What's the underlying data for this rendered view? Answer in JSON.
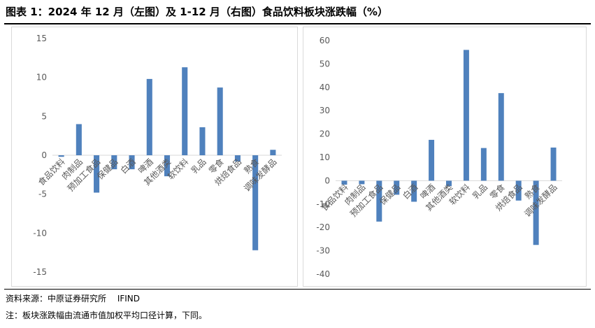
{
  "title": "图表 1：2024 年 12 月（左图）及 1-12 月（右图）食品饮料板块涨跌幅（%）",
  "source": "资料来源：中原证券研究所　 IFIND",
  "note": "注：板块涨跌幅由流通市值加权平均口径计算，下同。",
  "colors": {
    "bar": "#4f81bd",
    "axis": "#d9d9d9",
    "text": "#595959"
  },
  "chart_data": [
    {
      "type": "bar",
      "title": "",
      "xlabel": "",
      "ylabel": "",
      "ylim": [
        -15,
        15
      ],
      "yticks": [
        15,
        10,
        5,
        0,
        -5,
        -10,
        -15
      ],
      "grid": false,
      "categories": [
        "食品饮料",
        "肉制品",
        "预加工食品",
        "保健品",
        "白酒",
        "啤酒",
        "其他酒类",
        "软饮料",
        "乳品",
        "零食",
        "烘焙食品",
        "熟食",
        "调味发酵品"
      ],
      "values": [
        -0.2,
        4.0,
        -4.8,
        -1.8,
        -1.8,
        9.8,
        -2.7,
        11.3,
        3.6,
        8.7,
        -0.8,
        -12.2,
        0.7
      ]
    },
    {
      "type": "bar",
      "title": "",
      "xlabel": "",
      "ylabel": "",
      "ylim": [
        -40,
        60
      ],
      "yticks": [
        60,
        50,
        40,
        30,
        20,
        10,
        0,
        -10,
        -20,
        -30,
        -40
      ],
      "grid": false,
      "categories": [
        "食品饮料",
        "肉制品",
        "预加工食品",
        "保健品",
        "白酒",
        "啤酒",
        "其他酒类",
        "软饮料",
        "乳品",
        "零食",
        "烘焙食品",
        "熟食",
        "调味发酵品"
      ],
      "values": [
        -1.7,
        -1.5,
        -17.5,
        -6.0,
        -9.0,
        17.5,
        -2.3,
        56.0,
        14.0,
        37.5,
        -8.5,
        -27.5,
        14.2
      ]
    }
  ]
}
